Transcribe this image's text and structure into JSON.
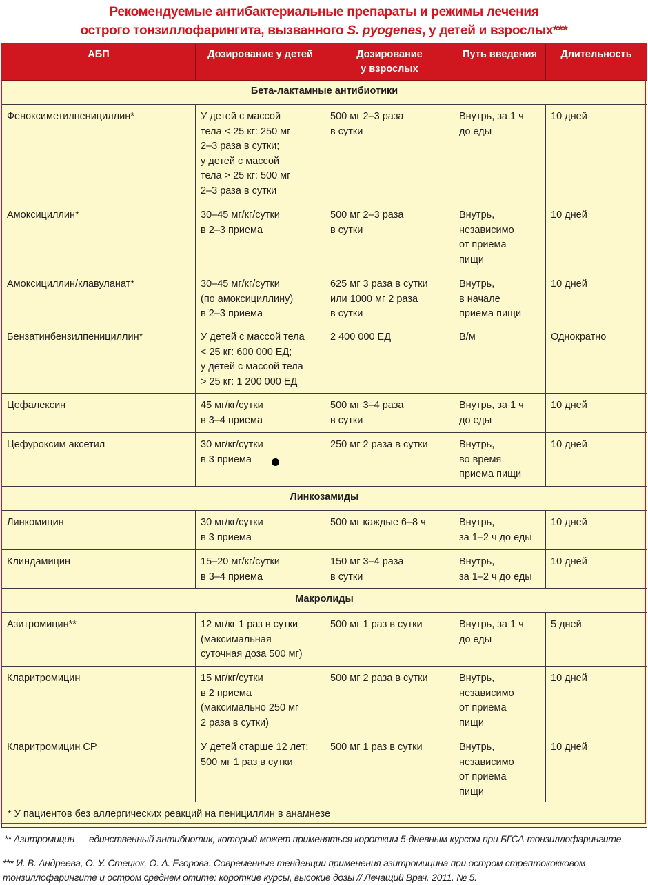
{
  "title": {
    "line1": "Рекомендуемые антибактериальные препараты и режимы лечения",
    "line2_pre": "острого тонзиллофарингита, вызванного ",
    "line2_italic": "S. pyogenes",
    "line2_post": ", у детей и взрослых***"
  },
  "headers": [
    "АБП",
    "Дозирование у детей",
    "Дозирование\nу взрослых",
    "Путь введения",
    "Длительность"
  ],
  "sections": [
    {
      "name": "Бета-лактамные антибиотики",
      "rows": [
        {
          "drug": "Феноксиметилпенициллин*",
          "child": "У детей с массой\nтела < 25 кг: 250 мг\n2–3 раза в сутки;\nу детей с массой\nтела > 25 кг: 500 мг\n2–3 раза в сутки",
          "adult": "500 мг 2–3 раза\nв сутки",
          "route": "Внутрь, за 1 ч\nдо еды",
          "duration": "10 дней"
        },
        {
          "drug": "Амоксициллин*",
          "child": "30–45 мг/кг/сутки\nв 2–3 приема",
          "adult": "500 мг 2–3 раза\nв сутки",
          "route": "Внутрь,\nнезависимо\nот приема\nпищи",
          "duration": "10 дней"
        },
        {
          "drug": "Амоксициллин/клавуланат*",
          "child": "30–45 мг/кг/сутки\n(по амоксициллину)\nв 2–3 приема",
          "adult": "625 мг 3 раза в сутки\nили 1000 мг 2 раза\nв сутки",
          "route": "Внутрь,\nв начале\nприема пищи",
          "duration": "10 дней"
        },
        {
          "drug": "Бензатинбензилпенициллин*",
          "child": "У детей с массой тела\n< 25 кг: 600 000 ЕД;\nу детей с массой тела\n> 25 кг: 1 200 000 ЕД",
          "adult": "2 400 000 ЕД",
          "route": "В/м",
          "duration": "Однократно"
        },
        {
          "drug": "Цефалексин",
          "child": "45 мг/кг/сутки\nв 3–4 приема",
          "adult": "500 мг 3–4 раза\nв сутки",
          "route": "Внутрь, за 1 ч\nдо еды",
          "duration": "10 дней"
        },
        {
          "drug": "Цефуроксим аксетил",
          "child": "30 мг/кг/сутки\nв 3 приема",
          "adult": "250 мг 2 раза в сутки",
          "route": "Внутрь,\nво время\nприема пищи",
          "duration": "10 дней"
        }
      ]
    },
    {
      "name": "Линкозамиды",
      "rows": [
        {
          "drug": "Линкомицин",
          "child": "30 мг/кг/сутки\nв 3 приема",
          "adult": "500 мг каждые 6–8 ч",
          "route": "Внутрь,\nза 1–2 ч до еды",
          "duration": "10 дней"
        },
        {
          "drug": "Клиндамицин",
          "child": "15–20 мг/кг/сутки\nв 3–4 приема",
          "adult": "150 мг 3–4 раза\nв сутки",
          "route": "Внутрь,\nза 1–2 ч до еды",
          "duration": "10 дней"
        }
      ]
    },
    {
      "name": "Макролиды",
      "rows": [
        {
          "drug": "Азитромицин**",
          "child": "12 мг/кг 1 раз в сутки\n(максимальная\nсуточная доза 500 мг)",
          "adult": "500 мг 1 раз в сутки",
          "route": "Внутрь, за 1 ч\nдо еды",
          "duration": "5 дней"
        },
        {
          "drug": "Кларитромицин",
          "child": "15 мг/кг/сутки\nв 2 приема\n(максимально 250 мг\n2 раза в сутки)",
          "adult": "500 мг 2 раза в сутки",
          "route": "Внутрь,\nнезависимо\nот приема\nпищи",
          "duration": "10 дней"
        },
        {
          "drug": "Кларитромицин СР",
          "child": "У детей старше 12 лет:\n500 мг 1 раз в сутки",
          "adult": "500 мг 1 раз в сутки",
          "route": "Внутрь,\nнезависимо\nот приема\nпищи",
          "duration": "10 дней"
        }
      ]
    }
  ],
  "footnote_table": "* У пациентов без аллергических реакций на пенициллин в анамнезе",
  "footnote2": "** Азитромицин — единственный антибиотик, который может применяться коротким 5-дневным курсом при БГСА-тонзиллофарингите.",
  "footnote3": "*** И. В. Андреева, О. У. Стецюк, О. А. Егорова. Современные тенденции применения азитромицина при остром стрептококковом\nтонзиллофарингите и остром среднем отите: короткие курсы, высокие дозы  // Лечащий Врач. 2011. № 5.",
  "colors": {
    "accent": "#d0161f",
    "cell_bg": "#fdf9cc"
  }
}
